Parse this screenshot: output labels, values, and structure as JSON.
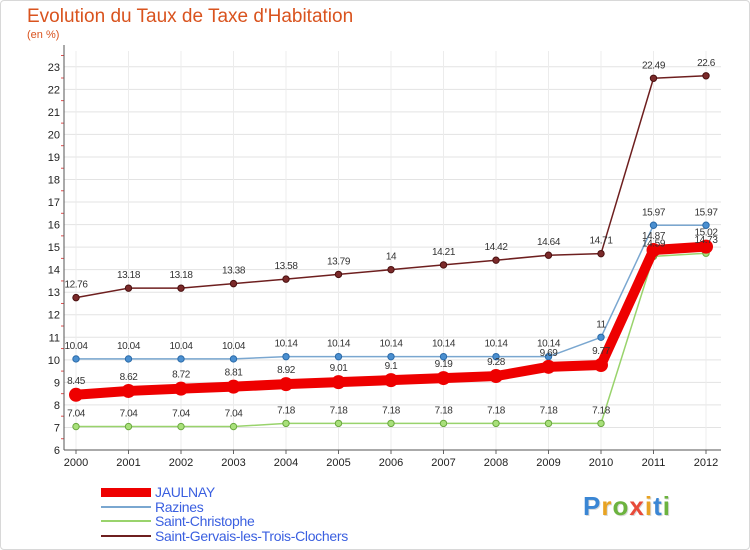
{
  "header": {
    "title": "Evolution du Taux de Taxe d'Habitation",
    "subtitle": "(en %)"
  },
  "logo": {
    "letters": [
      {
        "ch": "P",
        "color": "#3a86d4"
      },
      {
        "ch": "r",
        "color": "#e8a323"
      },
      {
        "ch": "o",
        "color": "#6cb33f"
      },
      {
        "ch": "x",
        "color": "#e84b3a"
      },
      {
        "ch": "i",
        "color": "#e8a323"
      },
      {
        "ch": "t",
        "color": "#3a86d4"
      },
      {
        "ch": "i",
        "color": "#6cb33f"
      }
    ]
  },
  "chart_data": {
    "type": "line",
    "title": "Evolution du Taux de Taxe d'Habitation",
    "ylabel": "(en %)",
    "xlabel": "",
    "x": [
      "2000",
      "2001",
      "2002",
      "2003",
      "2004",
      "2005",
      "2006",
      "2007",
      "2008",
      "2009",
      "2010",
      "2011",
      "2012"
    ],
    "ylim": [
      6,
      23.7
    ],
    "yticks": [
      "6",
      "7",
      "8",
      "9",
      "10",
      "11",
      "12",
      "13",
      "14",
      "15",
      "16",
      "17",
      "18",
      "19",
      "20",
      "21",
      "22",
      "23"
    ],
    "grid": true,
    "legend_position": "bottom-left",
    "series": [
      {
        "name": "Saint-Gervais-les-Trois-Clochers",
        "color": "#6e1f1f",
        "values": [
          12.76,
          13.18,
          13.18,
          13.38,
          13.58,
          13.79,
          14,
          14.21,
          14.42,
          14.64,
          14.71,
          22.49,
          22.6
        ],
        "labels": [
          "12.76",
          "13.18",
          "13.18",
          "13.38",
          "13.58",
          "13.79",
          "14",
          "14.21",
          "14.42",
          "14.64",
          "14.71",
          "22.49",
          "22.6"
        ]
      },
      {
        "name": "Razines",
        "color": "#7aa7d0",
        "values": [
          10.04,
          10.04,
          10.04,
          10.04,
          10.14,
          10.14,
          10.14,
          10.14,
          10.14,
          10.14,
          11,
          15.97,
          15.97
        ],
        "labels": [
          "10.04",
          "10.04",
          "10.04",
          "10.04",
          "10.14",
          "10.14",
          "10.14",
          "10.14",
          "10.14",
          "10.14",
          "11",
          "15.97",
          "15.97"
        ]
      },
      {
        "name": "Saint-Christophe",
        "color": "#99d36c",
        "values": [
          7.04,
          7.04,
          7.04,
          7.04,
          7.18,
          7.18,
          7.18,
          7.18,
          7.18,
          7.18,
          7.18,
          14.59,
          14.73
        ],
        "labels": [
          "7.04",
          "7.04",
          "7.04",
          "7.04",
          "7.18",
          "7.18",
          "7.18",
          "7.18",
          "7.18",
          "7.18",
          "7.18",
          "14.59",
          "14.73"
        ]
      },
      {
        "name": "JAULNAY",
        "color": "#ee0000",
        "values": [
          8.45,
          8.62,
          8.72,
          8.81,
          8.92,
          9.01,
          9.1,
          9.19,
          9.28,
          9.69,
          9.77,
          14.87,
          15.02
        ],
        "labels": [
          "8.45",
          "8.62",
          "8.72",
          "8.81",
          "8.92",
          "9.01",
          "9.1",
          "9.19",
          "9.28",
          "9.69",
          "9.77",
          "14.87",
          "15.02"
        ]
      }
    ]
  }
}
